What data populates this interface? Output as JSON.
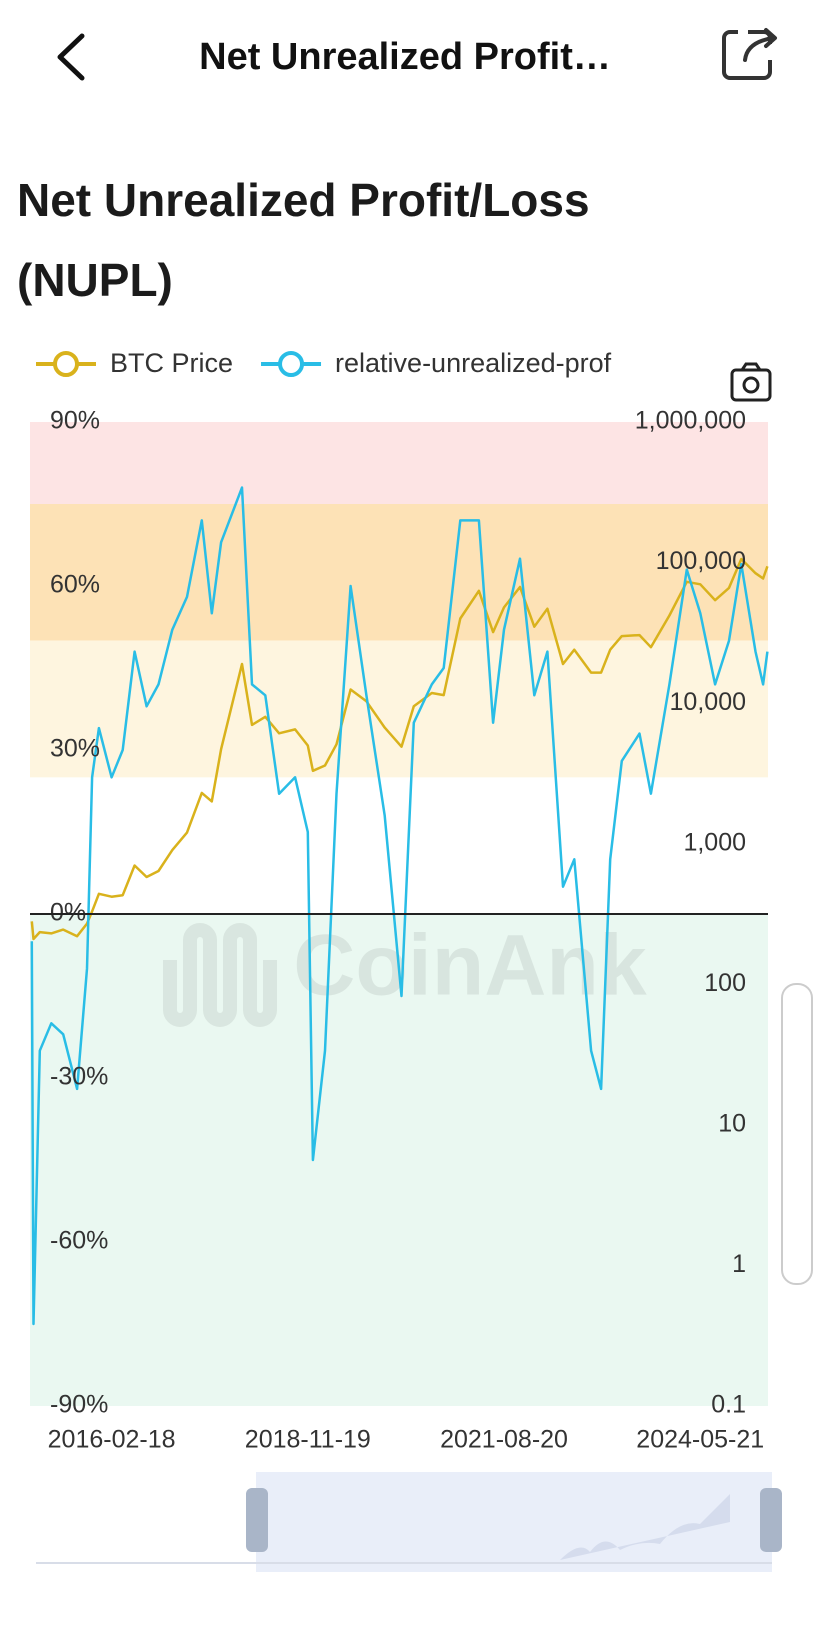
{
  "header": {
    "title": "Net Unrealized Profit…"
  },
  "chart_data": {
    "type": "line",
    "title": "Net Unrealized Profit/Loss (NUPL)",
    "watermark": "CoinAnk",
    "legend": "top",
    "x": [
      "2015-01-05",
      "2015-01-14",
      "2015-02-15",
      "2015-04-15",
      "2015-06-15",
      "2015-08-25",
      "2015-10-15",
      "2015-11-10",
      "2015-12-15",
      "2016-02-18",
      "2016-04-15",
      "2016-06-15",
      "2016-08-15",
      "2016-10-15",
      "2016-12-25",
      "2017-03-10",
      "2017-05-25",
      "2017-07-15",
      "2017-09-01",
      "2017-12-17",
      "2018-02-06",
      "2018-04-15",
      "2018-06-25",
      "2018-09-15",
      "2018-11-19",
      "2018-12-15",
      "2019-02-15",
      "2019-04-15",
      "2019-06-26",
      "2019-09-15",
      "2019-12-18",
      "2020-03-13",
      "2020-05-15",
      "2020-08-15",
      "2020-10-15",
      "2021-01-08",
      "2021-04-13",
      "2021-06-25",
      "2021-08-20",
      "2021-11-10",
      "2022-01-22",
      "2022-03-30",
      "2022-06-18",
      "2022-08-15",
      "2022-11-09",
      "2022-12-30",
      "2023-02-15",
      "2023-04-15",
      "2023-07-15",
      "2023-09-11",
      "2023-12-15",
      "2024-03-13",
      "2024-05-21",
      "2024-08-05",
      "2024-10-15",
      "2024-12-17",
      "2025-02-28",
      "2025-04-08",
      "2025-04-30"
    ],
    "series": [
      {
        "name": "BTC Price",
        "color": "#d9b21c",
        "axis": "y2",
        "values": [
          280,
          210,
          235,
          230,
          245,
          220,
          270,
          330,
          440,
          420,
          430,
          700,
          580,
          640,
          900,
          1200,
          2300,
          2000,
          4700,
          19000,
          7000,
          8000,
          6100,
          6500,
          5000,
          3300,
          3600,
          5100,
          12500,
          10300,
          6700,
          4900,
          9500,
          11800,
          11400,
          40000,
          63000,
          32000,
          48000,
          67000,
          35000,
          47000,
          19000,
          24000,
          16500,
          16500,
          24000,
          30000,
          30500,
          25000,
          42000,
          73000,
          70000,
          54000,
          66000,
          106000,
          84000,
          77000,
          94000
        ]
      },
      {
        "name": "relative-unrealized-prof",
        "color": "#29bde6",
        "values": [
          -5,
          -75,
          -25,
          -20,
          -22,
          -32,
          -10,
          25,
          34,
          25,
          30,
          48,
          38,
          42,
          52,
          58,
          72,
          55,
          68,
          78,
          42,
          40,
          22,
          25,
          15,
          -45,
          -25,
          22,
          60,
          40,
          18,
          -15,
          35,
          42,
          45,
          72,
          72,
          35,
          52,
          65,
          40,
          48,
          5,
          10,
          -25,
          -32,
          10,
          28,
          33,
          22,
          42,
          63,
          55,
          42,
          50,
          64,
          48,
          42,
          48
        ]
      }
    ],
    "zones": [
      {
        "from": 75,
        "to": 90,
        "color": "#fde4e4"
      },
      {
        "from": 50,
        "to": 75,
        "color": "#fde2b6"
      },
      {
        "from": 25,
        "to": 50,
        "color": "#fef5df"
      },
      {
        "from": -90,
        "to": 0,
        "color": "#eaf8f1"
      }
    ],
    "xlim": [
      "2014-12-27",
      "2025-05-03"
    ],
    "xticks": [
      "2016-02-18",
      "2018-11-19",
      "2021-08-20",
      "2024-05-21"
    ],
    "ylim": [
      -90,
      90
    ],
    "yticks": [
      {
        "value": -90,
        "label": "-90%"
      },
      {
        "value": -60,
        "label": "-60%"
      },
      {
        "value": -30,
        "label": "-30%"
      },
      {
        "value": 0,
        "label": "0%"
      },
      {
        "value": 30,
        "label": "30%"
      },
      {
        "value": 60,
        "label": "60%"
      },
      {
        "value": 90,
        "label": "90%"
      }
    ],
    "y2lim": [
      0.1,
      1000000
    ],
    "y2log": true,
    "y2ticks": [
      0.1,
      1,
      10,
      100,
      {
        "value": 1000,
        "label": "1,000"
      },
      {
        "value": 10000,
        "label": "10,000"
      },
      {
        "value": 100000,
        "label": "100,000"
      },
      {
        "value": 1000000,
        "label": "1,000,000"
      }
    ]
  }
}
